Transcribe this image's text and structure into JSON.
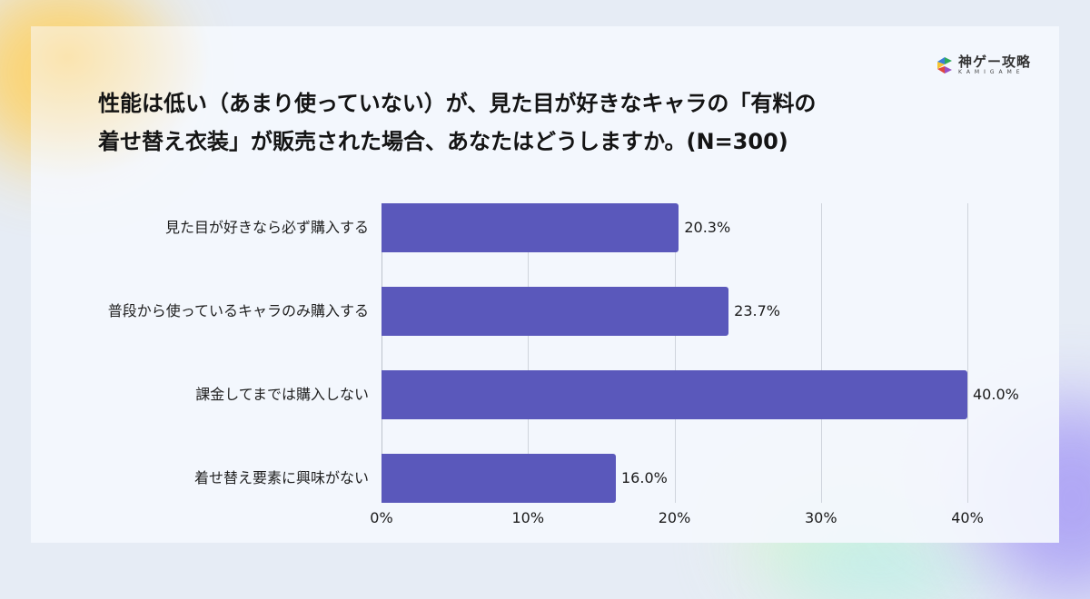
{
  "brand": {
    "name_jp": "神ゲー攻略",
    "name_en": "KAMIGAME",
    "logo_colors": [
      "#2eaa5b",
      "#3b7fd9",
      "#f4c431",
      "#e0473d",
      "#9b4fc4"
    ]
  },
  "colors": {
    "bar": "#5a58bb",
    "background": "#e6ecf5",
    "card": "#f4f7fd"
  },
  "chart_data": {
    "type": "bar",
    "orientation": "horizontal",
    "title": "性能は低い（あまり使っていない）が、見た目が好きなキャラの「有料の着せ替え衣装」が販売された場合、あなたはどうしますか。(N=300)",
    "title_lines": [
      "性能は低い（あまり使っていない）が、見た目が好きなキャラの「有料の",
      "着せ替え衣装」が販売された場合、あなたはどうしますか。(N=300)"
    ],
    "categories": [
      "見た目が好きなら必ず購入する",
      "普段から使っているキャラのみ購入する",
      "課金してまでは購入しない",
      "着せ替え要素に興味がない"
    ],
    "values": [
      20.3,
      23.7,
      40.0,
      16.0
    ],
    "value_labels": [
      "20.3%",
      "23.7%",
      "40.0%",
      "16.0%"
    ],
    "xlabel": "",
    "ylabel": "",
    "xlim": [
      0,
      40
    ],
    "ticks": [
      0,
      10,
      20,
      30,
      40
    ],
    "tick_labels": [
      "0%",
      "10%",
      "20%",
      "30%",
      "40%"
    ],
    "grid": true,
    "legend": "none"
  }
}
